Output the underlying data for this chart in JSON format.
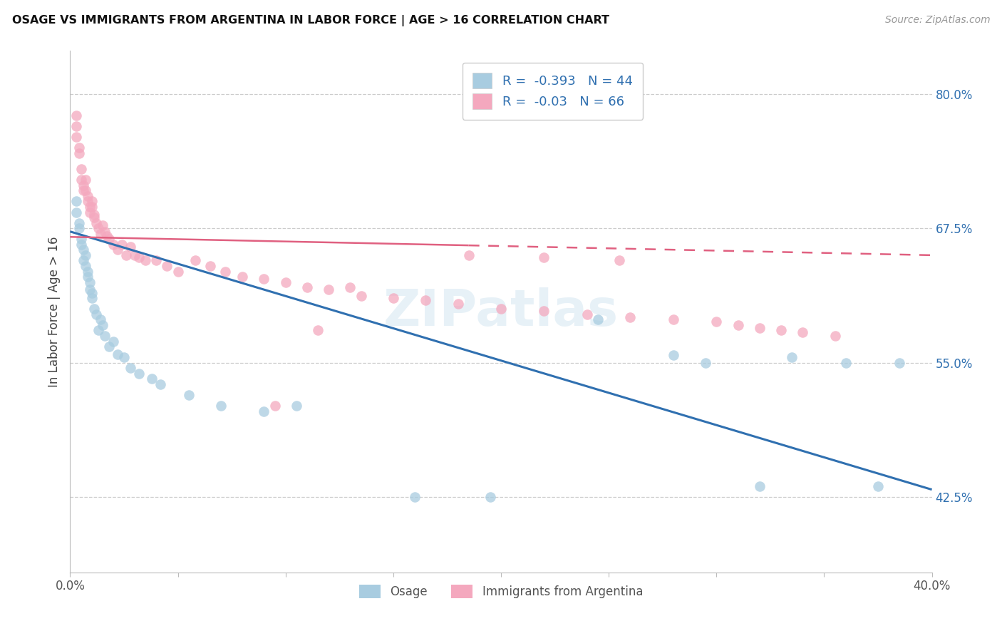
{
  "title": "OSAGE VS IMMIGRANTS FROM ARGENTINA IN LABOR FORCE | AGE > 16 CORRELATION CHART",
  "source": "Source: ZipAtlas.com",
  "ylabel": "In Labor Force | Age > 16",
  "legend_label_1": "Osage",
  "legend_label_2": "Immigrants from Argentina",
  "r1": -0.393,
  "n1": 44,
  "r2": -0.03,
  "n2": 66,
  "color1": "#a8cce0",
  "color2": "#f4a8be",
  "trendline1_color": "#3070b0",
  "trendline2_color": "#e06080",
  "xmin": 0.0,
  "xmax": 0.4,
  "ymin": 0.355,
  "ymax": 0.84,
  "yticks": [
    0.425,
    0.55,
    0.675,
    0.8
  ],
  "ytick_labels": [
    "42.5%",
    "55.0%",
    "67.5%",
    "80.0%"
  ],
  "background_color": "#ffffff",
  "grid_color": "#cccccc",
  "watermark": "ZIPatlas",
  "trendline1_x0": 0.0,
  "trendline1_y0": 0.672,
  "trendline1_x1": 0.4,
  "trendline1_y1": 0.432,
  "trendline2_x0": 0.0,
  "trendline2_y0": 0.667,
  "trendline2_x1": 0.4,
  "trendline2_y1": 0.65,
  "trendline2_solid_end": 0.185,
  "osage_x": [
    0.003,
    0.003,
    0.004,
    0.004,
    0.005,
    0.005,
    0.006,
    0.006,
    0.007,
    0.007,
    0.008,
    0.008,
    0.009,
    0.009,
    0.01,
    0.01,
    0.011,
    0.012,
    0.013,
    0.014,
    0.015,
    0.016,
    0.018,
    0.02,
    0.022,
    0.025,
    0.028,
    0.032,
    0.038,
    0.042,
    0.055,
    0.07,
    0.09,
    0.105,
    0.16,
    0.195,
    0.245,
    0.28,
    0.295,
    0.32,
    0.335,
    0.36,
    0.375,
    0.385
  ],
  "osage_y": [
    0.69,
    0.7,
    0.68,
    0.675,
    0.665,
    0.66,
    0.655,
    0.645,
    0.64,
    0.65,
    0.63,
    0.635,
    0.625,
    0.618,
    0.61,
    0.615,
    0.6,
    0.595,
    0.58,
    0.59,
    0.585,
    0.575,
    0.565,
    0.57,
    0.558,
    0.555,
    0.545,
    0.54,
    0.535,
    0.53,
    0.52,
    0.51,
    0.505,
    0.51,
    0.425,
    0.425,
    0.59,
    0.557,
    0.55,
    0.435,
    0.555,
    0.55,
    0.435,
    0.55
  ],
  "argentina_x": [
    0.003,
    0.003,
    0.003,
    0.004,
    0.004,
    0.005,
    0.005,
    0.006,
    0.006,
    0.007,
    0.007,
    0.008,
    0.008,
    0.009,
    0.009,
    0.01,
    0.01,
    0.011,
    0.011,
    0.012,
    0.013,
    0.014,
    0.015,
    0.016,
    0.017,
    0.018,
    0.02,
    0.022,
    0.024,
    0.026,
    0.028,
    0.03,
    0.032,
    0.035,
    0.04,
    0.045,
    0.05,
    0.058,
    0.065,
    0.072,
    0.08,
    0.09,
    0.1,
    0.11,
    0.12,
    0.135,
    0.15,
    0.165,
    0.18,
    0.2,
    0.22,
    0.24,
    0.26,
    0.28,
    0.3,
    0.31,
    0.32,
    0.33,
    0.34,
    0.355,
    0.095,
    0.115,
    0.13,
    0.185,
    0.22,
    0.255
  ],
  "argentina_y": [
    0.76,
    0.77,
    0.78,
    0.745,
    0.75,
    0.73,
    0.72,
    0.715,
    0.71,
    0.72,
    0.71,
    0.705,
    0.7,
    0.695,
    0.69,
    0.695,
    0.7,
    0.685,
    0.688,
    0.68,
    0.675,
    0.67,
    0.678,
    0.672,
    0.668,
    0.665,
    0.66,
    0.655,
    0.66,
    0.65,
    0.658,
    0.65,
    0.648,
    0.645,
    0.645,
    0.64,
    0.635,
    0.645,
    0.64,
    0.635,
    0.63,
    0.628,
    0.625,
    0.62,
    0.618,
    0.612,
    0.61,
    0.608,
    0.605,
    0.6,
    0.598,
    0.595,
    0.592,
    0.59,
    0.588,
    0.585,
    0.582,
    0.58,
    0.578,
    0.575,
    0.51,
    0.58,
    0.62,
    0.65,
    0.648,
    0.645
  ]
}
